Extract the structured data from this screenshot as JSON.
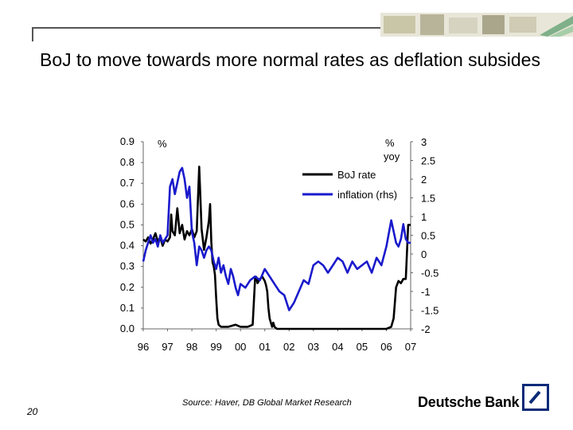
{
  "slide": {
    "title": "BoJ to move towards more normal rates as deflation subsides",
    "page_number": "20",
    "source": "Source: Haver, DB Global Market Research",
    "brand": "Deutsche Bank"
  },
  "colors": {
    "boj": "#000000",
    "inflation": "#1a1acc",
    "axis": "#666666"
  },
  "chart_data": {
    "type": "line",
    "title": "",
    "xlabel": "",
    "x_ticks": [
      "96",
      "97",
      "98",
      "99",
      "00",
      "01",
      "02",
      "03",
      "04",
      "05",
      "06",
      "07"
    ],
    "x_range": [
      1996.0,
      2007.0
    ],
    "left_axis": {
      "unit": "%",
      "ylim": [
        0.0,
        0.9
      ],
      "ticks": [
        "0.0",
        "0.1",
        "0.2",
        "0.3",
        "0.4",
        "0.5",
        "0.6",
        "0.7",
        "0.8",
        "0.9"
      ]
    },
    "right_axis": {
      "unit_line1": "%",
      "unit_line2": "yoy",
      "ylim": [
        -2,
        3
      ],
      "ticks": [
        "-2",
        "-1.5",
        "-1",
        "-0.5",
        "0",
        "0.5",
        "1",
        "1.5",
        "2",
        "2.5",
        "3"
      ]
    },
    "legend": {
      "position": "top-right",
      "items": [
        "BoJ rate",
        "inflation (rhs)"
      ]
    },
    "series": [
      {
        "name": "BoJ rate",
        "axis": "left",
        "x": [
          1996.0,
          1996.1,
          1996.2,
          1996.3,
          1996.4,
          1996.5,
          1996.6,
          1996.7,
          1996.8,
          1996.9,
          1997.0,
          1997.1,
          1997.15,
          1997.2,
          1997.3,
          1997.4,
          1997.5,
          1997.6,
          1997.7,
          1997.8,
          1997.9,
          1998.0,
          1998.1,
          1998.2,
          1998.3,
          1998.4,
          1998.5,
          1998.6,
          1998.7,
          1998.75,
          1998.8,
          1998.85,
          1998.9,
          1998.95,
          1999.0,
          1999.05,
          1999.1,
          1999.2,
          1999.5,
          1999.8,
          2000.0,
          2000.3,
          2000.5,
          2000.6,
          2000.65,
          2000.7,
          2000.8,
          2000.9,
          2001.0,
          2001.05,
          2001.1,
          2001.15,
          2001.2,
          2001.3,
          2001.35,
          2001.4,
          2001.5,
          2002.0,
          2003.0,
          2004.0,
          2005.0,
          2006.0,
          2006.2,
          2006.3,
          2006.4,
          2006.5,
          2006.6,
          2006.7,
          2006.8,
          2006.9,
          2007.0
        ],
        "values": [
          0.43,
          0.42,
          0.44,
          0.41,
          0.43,
          0.46,
          0.42,
          0.44,
          0.4,
          0.43,
          0.42,
          0.44,
          0.55,
          0.47,
          0.45,
          0.58,
          0.46,
          0.5,
          0.43,
          0.47,
          0.45,
          0.48,
          0.44,
          0.47,
          0.78,
          0.48,
          0.38,
          0.44,
          0.52,
          0.6,
          0.42,
          0.32,
          0.3,
          0.26,
          0.15,
          0.05,
          0.02,
          0.01,
          0.01,
          0.02,
          0.01,
          0.01,
          0.02,
          0.24,
          0.25,
          0.22,
          0.24,
          0.25,
          0.23,
          0.21,
          0.18,
          0.1,
          0.05,
          0.01,
          0.03,
          0.01,
          0.0,
          0.0,
          0.0,
          0.0,
          0.0,
          0.0,
          0.01,
          0.05,
          0.2,
          0.23,
          0.22,
          0.24,
          0.24,
          0.5,
          0.5
        ]
      },
      {
        "name": "inflation (rhs)",
        "axis": "right",
        "x": [
          1996.0,
          1996.1,
          1996.2,
          1996.3,
          1996.4,
          1996.5,
          1996.6,
          1996.7,
          1996.8,
          1996.9,
          1997.0,
          1997.1,
          1997.2,
          1997.3,
          1997.4,
          1997.5,
          1997.6,
          1997.7,
          1997.8,
          1997.9,
          1998.0,
          1998.1,
          1998.2,
          1998.3,
          1998.4,
          1998.5,
          1998.6,
          1998.7,
          1998.8,
          1998.9,
          1999.0,
          1999.1,
          1999.2,
          1999.3,
          1999.4,
          1999.5,
          1999.6,
          1999.7,
          1999.8,
          1999.9,
          2000.0,
          2000.2,
          2000.4,
          2000.6,
          2000.8,
          2001.0,
          2001.2,
          2001.4,
          2001.6,
          2001.8,
          2002.0,
          2002.2,
          2002.4,
          2002.6,
          2002.8,
          2003.0,
          2003.2,
          2003.4,
          2003.6,
          2003.8,
          2004.0,
          2004.2,
          2004.4,
          2004.6,
          2004.8,
          2005.0,
          2005.2,
          2005.4,
          2005.6,
          2005.8,
          2006.0,
          2006.2,
          2006.4,
          2006.5,
          2006.6,
          2006.7,
          2006.8,
          2006.9,
          2007.0
        ],
        "values": [
          -0.2,
          0.1,
          0.3,
          0.5,
          0.3,
          0.4,
          0.2,
          0.5,
          0.3,
          0.4,
          0.5,
          1.8,
          2.0,
          1.6,
          1.9,
          2.2,
          2.3,
          2.0,
          1.5,
          1.8,
          0.6,
          0.3,
          -0.3,
          0.2,
          0.1,
          -0.1,
          0.1,
          0.2,
          0.1,
          -0.2,
          -0.4,
          -0.1,
          -0.5,
          -0.3,
          -0.6,
          -0.8,
          -0.4,
          -0.6,
          -0.9,
          -1.1,
          -0.8,
          -0.9,
          -0.7,
          -0.6,
          -0.7,
          -0.4,
          -0.6,
          -0.8,
          -1.0,
          -1.1,
          -1.5,
          -1.3,
          -1.0,
          -0.7,
          -0.8,
          -0.3,
          -0.2,
          -0.3,
          -0.5,
          -0.3,
          -0.1,
          -0.2,
          -0.5,
          -0.2,
          -0.4,
          -0.3,
          -0.2,
          -0.5,
          -0.1,
          -0.3,
          0.2,
          0.9,
          0.3,
          0.2,
          0.4,
          0.8,
          0.4,
          0.3,
          0.3
        ]
      }
    ]
  }
}
